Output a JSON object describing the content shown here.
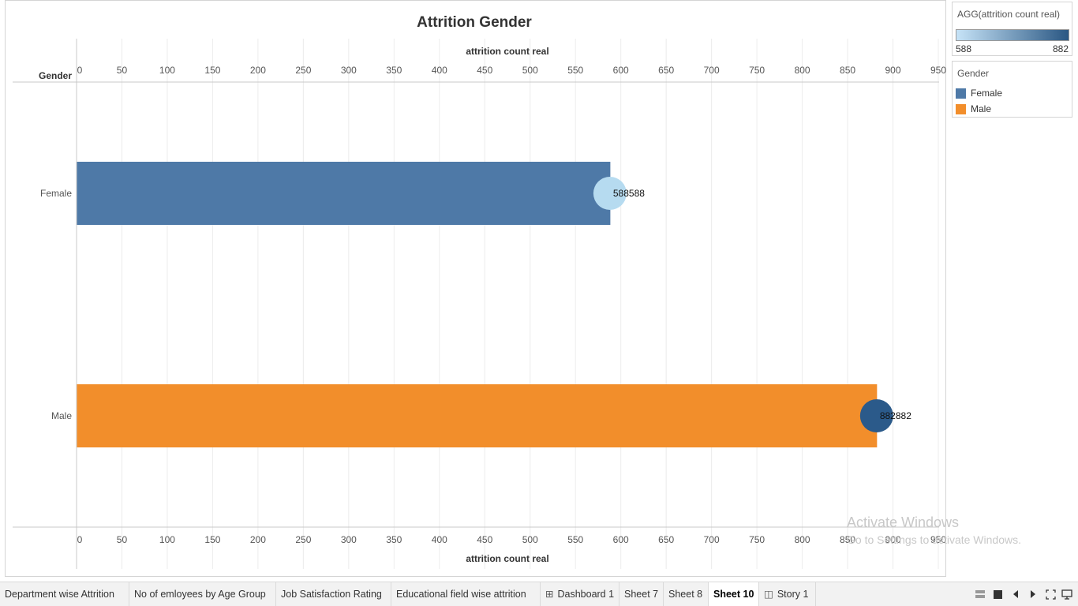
{
  "chart_data": {
    "type": "bar",
    "title": "Attrition Gender",
    "xlabel": "attrition count real",
    "ylabel": "Gender",
    "categories": [
      "Female",
      "Male"
    ],
    "values": [
      588,
      882
    ],
    "bar_colors": [
      "#4e79a7",
      "#f28e2b"
    ],
    "mark_labels": [
      "588588",
      "882882"
    ],
    "circle_colors": [
      "#b6dbf0",
      "#2b5a8a"
    ],
    "xlim": [
      0,
      950
    ],
    "xticks": [
      0,
      50,
      100,
      150,
      200,
      250,
      300,
      350,
      400,
      450,
      500,
      550,
      600,
      650,
      700,
      750,
      800,
      850,
      900,
      950
    ],
    "grid": true,
    "legend_position": "right"
  },
  "legends": {
    "color_scale": {
      "title": "AGG(attrition count real)",
      "min_label": "588",
      "max_label": "882",
      "min_color": "#c6e3f7",
      "max_color": "#2a5783"
    },
    "gender": {
      "title": "Gender",
      "items": [
        {
          "label": "Female",
          "color": "#4e79a7"
        },
        {
          "label": "Male",
          "color": "#f28e2b"
        }
      ]
    }
  },
  "watermark": {
    "title": "Activate Windows",
    "subtitle": "Go to Settings to activate Windows."
  },
  "tabs": [
    {
      "label": "Department wise  Attrition",
      "icon": "",
      "active": false
    },
    {
      "label": "No of emloyees by Age Group",
      "icon": "",
      "active": false
    },
    {
      "label": "Job Satisfaction Rating",
      "icon": "",
      "active": false
    },
    {
      "label": "Educational field wise attrition",
      "icon": "",
      "active": false
    },
    {
      "label": "Dashboard 1",
      "icon": "dashboard-icon",
      "active": false
    },
    {
      "label": "Sheet 7",
      "icon": "",
      "active": false
    },
    {
      "label": "Sheet 8",
      "icon": "",
      "active": false
    },
    {
      "label": "Sheet 10",
      "icon": "",
      "active": true
    },
    {
      "label": "Story 1",
      "icon": "story-icon",
      "active": false
    }
  ],
  "nav_icons": [
    "grid-view-icon",
    "stop-icon",
    "prev-icon",
    "next-icon",
    "fullscreen-icon",
    "presentation-icon"
  ]
}
